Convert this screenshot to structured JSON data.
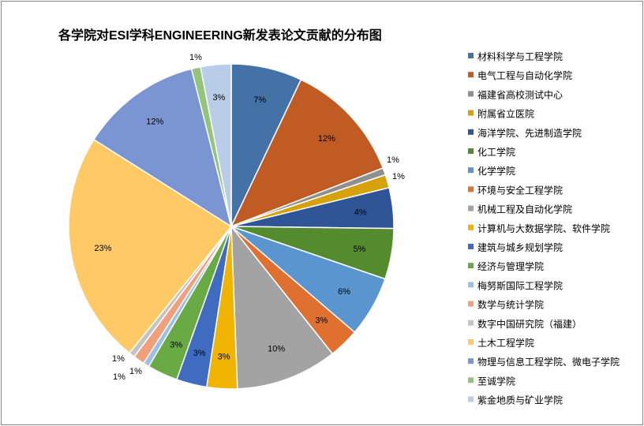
{
  "chart_data": {
    "type": "pie",
    "title": "各学院对ESI学科ENGINEERING新发表论文贡献的分布图",
    "legend_position": "right",
    "slices": [
      {
        "name": "材料科学与工程学院",
        "value": 7,
        "label": "7%",
        "color": "#4472a6"
      },
      {
        "name": "电气工程与自动化学院",
        "value": 12,
        "label": "12%",
        "color": "#c05b24"
      },
      {
        "name": "福建省高校测试中心",
        "value": 0.7,
        "label": "1%",
        "color": "#8f8f8f"
      },
      {
        "name": "附属省立医院",
        "value": 1.3,
        "label": "1%",
        "color": "#d7a10b"
      },
      {
        "name": "海洋学院、先进制造学院",
        "value": 4,
        "label": "4%",
        "color": "#2f5597"
      },
      {
        "name": "化工学院",
        "value": 5,
        "label": "5%",
        "color": "#558b2f"
      },
      {
        "name": "化学学院",
        "value": 6,
        "label": "6%",
        "color": "#5b95cf"
      },
      {
        "name": "环境与安全工程学院",
        "value": 3,
        "label": "3%",
        "color": "#e07030"
      },
      {
        "name": "机械工程及自动化学院",
        "value": 10,
        "label": "10%",
        "color": "#a3a3a3"
      },
      {
        "name": "计算机与大数据学院、软件学院",
        "value": 3,
        "label": "3%",
        "color": "#f0b400"
      },
      {
        "name": "建筑与城乡规划学院",
        "value": 3,
        "label": "3%",
        "color": "#3f6cc0"
      },
      {
        "name": "经济与管理学院",
        "value": 3,
        "label": "3%",
        "color": "#6aaa45"
      },
      {
        "name": "梅努斯国际工程学院",
        "value": 0.6,
        "label": "1%",
        "color": "#9cc0e4"
      },
      {
        "name": "数学与统计学院",
        "value": 1.1,
        "label": "1%",
        "color": "#f0a07c"
      },
      {
        "name": "数字中国研究院（福建）",
        "value": 0.6,
        "label": "1%",
        "color": "#c4c4c4"
      },
      {
        "name": "土木工程学院",
        "value": 23,
        "label": "23%",
        "color": "#ffc966"
      },
      {
        "name": "物理与信息工程学院、微电子学院",
        "value": 12,
        "label": "12%",
        "color": "#7b94d2"
      },
      {
        "name": "至诚学院",
        "value": 0.9,
        "label": "1%",
        "color": "#94c47c"
      },
      {
        "name": "紫金地质与矿业学院",
        "value": 3,
        "label": "3%",
        "color": "#b9cde8"
      }
    ]
  }
}
